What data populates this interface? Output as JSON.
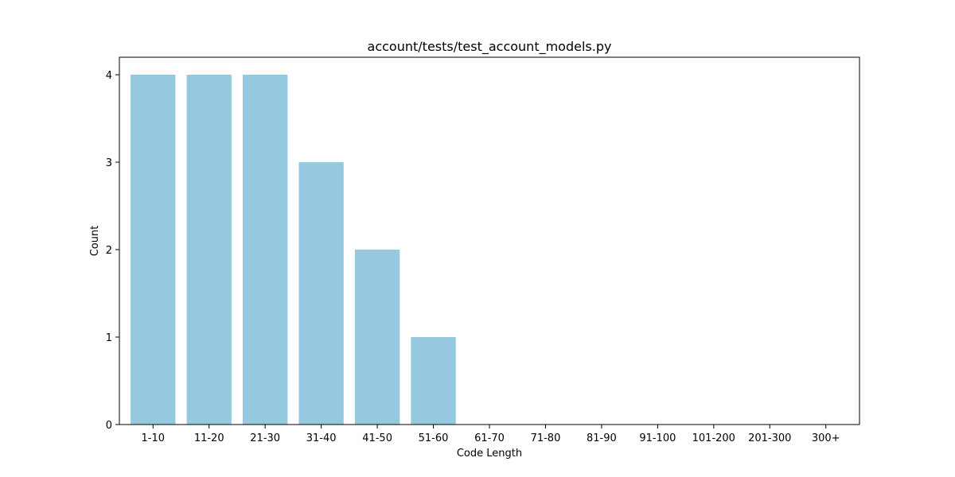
{
  "chart_data": {
    "type": "bar",
    "title": "account/tests/test_account_models.py",
    "xlabel": "Code Length",
    "ylabel": "Count",
    "categories": [
      "1-10",
      "11-20",
      "21-30",
      "31-40",
      "41-50",
      "51-60",
      "61-70",
      "71-80",
      "81-90",
      "91-100",
      "101-200",
      "201-300",
      "300+"
    ],
    "values": [
      4,
      4,
      4,
      3,
      2,
      1,
      0,
      0,
      0,
      0,
      0,
      0,
      0
    ],
    "ylim": [
      0,
      4.2
    ],
    "yticks": [
      0,
      1,
      2,
      3,
      4
    ],
    "bar_color": "#96c9df",
    "grid": false
  }
}
